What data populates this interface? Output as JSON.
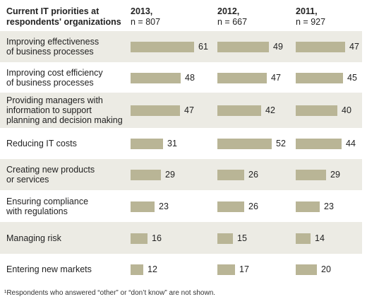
{
  "chart_data": {
    "type": "bar",
    "title": "Current IT priorities at respondents' organizations",
    "years": [
      {
        "year": "2013,",
        "n": "n = 807"
      },
      {
        "year": "2012,",
        "n": "n = 667"
      },
      {
        "year": "2011,",
        "n": "n = 927"
      }
    ],
    "categories": [
      "Improving effectiveness\nof business processes",
      "Improving cost efficiency\nof business processes",
      "Providing managers with\ninformation to support\nplanning and decision making",
      "Reducing IT costs",
      "Creating new products\nor services",
      "Ensuring compliance\nwith regulations",
      "Managing risk",
      "Entering new markets"
    ],
    "series": [
      {
        "name": "2013",
        "values": [
          61,
          48,
          47,
          31,
          29,
          23,
          16,
          12
        ]
      },
      {
        "name": "2012",
        "values": [
          49,
          47,
          42,
          52,
          26,
          26,
          15,
          17
        ]
      },
      {
        "name": "2011",
        "values": [
          47,
          45,
          40,
          44,
          29,
          23,
          14,
          20
        ]
      }
    ],
    "footnote": "¹Respondents who answered “other” or “don’t know” are not shown."
  },
  "colors": {
    "bar": "#b9b596",
    "shade": "#ecebe4"
  }
}
